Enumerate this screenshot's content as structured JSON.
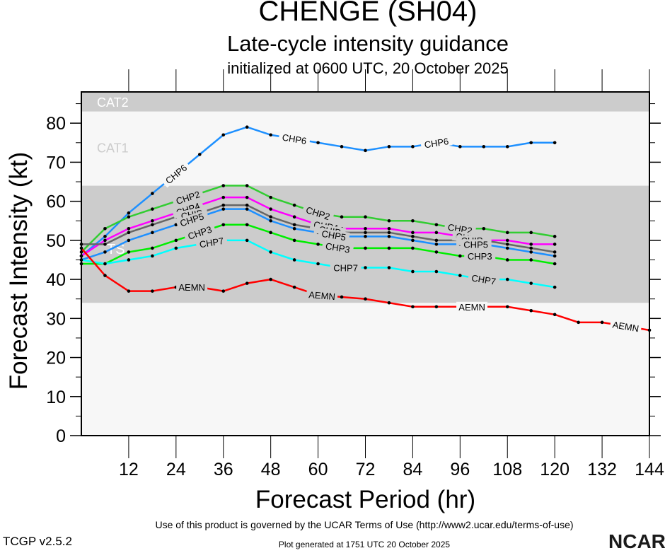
{
  "header": {
    "title": "CHENGE (SH04)",
    "subtitle": "Late-cycle intensity guidance",
    "init_line": "initialized at 0600 UTC, 20 October 2025"
  },
  "footer": {
    "terms": "Use of this product is governed by the UCAR Terms of Use (http://www2.ucar.edu/terms-of-use)",
    "version": "TCGP v2.5.2",
    "generated": "Plot generated at 1751 UTC   20 October 2025",
    "logo": "NCAR"
  },
  "chart_data": {
    "type": "line",
    "title": "CHENGE (SH04)",
    "xlabel": "Forecast Period (hr)",
    "ylabel": "Forecast Intensity (kt)",
    "xlim": [
      0,
      144
    ],
    "ylim": [
      0,
      88
    ],
    "xticks": [
      12,
      24,
      36,
      48,
      60,
      72,
      84,
      96,
      108,
      120,
      132,
      144
    ],
    "yticks": [
      0,
      10,
      20,
      30,
      40,
      50,
      60,
      70,
      80
    ],
    "bands": [
      {
        "label": "TS",
        "range": [
          34,
          64
        ],
        "color": "#cccccc",
        "label_color": "#ffffff"
      },
      {
        "label": "CAT1",
        "range": [
          64,
          83
        ],
        "color": "#f7f7f7",
        "label_color": "#cccccc"
      },
      {
        "label": "CAT2",
        "range": [
          83,
          88
        ],
        "color": "#cccccc",
        "label_color": "#ffffff"
      }
    ],
    "below_band_color": "#f7f7f7",
    "series": [
      {
        "name": "CHP6",
        "color": "#1e90ff",
        "x": [
          0,
          6,
          12,
          18,
          24,
          30,
          36,
          42,
          48,
          54,
          60,
          66,
          72,
          78,
          84,
          90,
          96,
          102,
          108,
          114,
          120
        ],
        "values": [
          46,
          51,
          57,
          62,
          67,
          72,
          77,
          79,
          77,
          76,
          75,
          74,
          73,
          74,
          74,
          75,
          74,
          74,
          74,
          75,
          75
        ],
        "label_at": [
          24,
          54,
          90
        ]
      },
      {
        "name": "CHP2",
        "color": "#32cd32",
        "x": [
          0,
          6,
          12,
          18,
          24,
          30,
          36,
          42,
          48,
          54,
          60,
          66,
          72,
          78,
          84,
          90,
          96,
          102,
          108,
          114,
          120
        ],
        "values": [
          47,
          53,
          56,
          58,
          60,
          62,
          64,
          64,
          61,
          59,
          57,
          56,
          56,
          55,
          55,
          54,
          53,
          53,
          52,
          52,
          51
        ],
        "label_at": [
          27,
          60,
          96
        ]
      },
      {
        "name": "CHP4",
        "color": "#ff00ff",
        "x": [
          0,
          6,
          12,
          18,
          24,
          30,
          36,
          42,
          48,
          54,
          60,
          66,
          72,
          78,
          84,
          90,
          96,
          102,
          108,
          114,
          120
        ],
        "values": [
          46,
          50,
          53,
          55,
          57,
          59,
          61,
          61,
          58,
          56,
          54,
          53,
          53,
          53,
          52,
          52,
          51,
          50,
          50,
          49,
          49
        ],
        "label_at": [
          27,
          62,
          98
        ]
      },
      {
        "name": "CHIP",
        "color": "#666666",
        "x": [
          0,
          6,
          12,
          18,
          24,
          30,
          36,
          42,
          48,
          54,
          60,
          66,
          72,
          78,
          84,
          90,
          96,
          102,
          108,
          114,
          120
        ],
        "values": [
          49,
          49,
          52,
          54,
          56,
          57,
          59,
          59,
          56,
          54,
          53,
          52,
          52,
          52,
          51,
          50,
          50,
          50,
          49,
          48,
          47
        ],
        "label_at": [
          28,
          63,
          99
        ]
      },
      {
        "name": "CHP5",
        "color": "#1e90ff",
        "x": [
          0,
          6,
          12,
          18,
          24,
          30,
          36,
          42,
          48,
          54,
          60,
          66,
          72,
          78,
          84,
          90,
          96,
          102,
          108,
          114,
          120
        ],
        "values": [
          45,
          47,
          50,
          52,
          54,
          56,
          58,
          58,
          55,
          53,
          52,
          51,
          51,
          51,
          50,
          49,
          49,
          49,
          48,
          47,
          46
        ],
        "label_at": [
          28,
          64,
          100
        ]
      },
      {
        "name": "CHP3",
        "color": "#00ee00",
        "x": [
          0,
          6,
          12,
          18,
          24,
          30,
          36,
          42,
          48,
          54,
          60,
          66,
          72,
          78,
          84,
          90,
          96,
          102,
          108,
          114,
          120
        ],
        "values": [
          44,
          44,
          47,
          48,
          50,
          52,
          54,
          54,
          52,
          50,
          49,
          48,
          48,
          48,
          48,
          47,
          46,
          46,
          45,
          45,
          44
        ],
        "label_at": [
          30,
          65,
          101
        ]
      },
      {
        "name": "CHP7",
        "color": "#00ffff",
        "x": [
          0,
          6,
          12,
          18,
          24,
          30,
          36,
          42,
          48,
          54,
          60,
          66,
          72,
          78,
          84,
          90,
          96,
          102,
          108,
          114,
          120
        ],
        "values": [
          45,
          44,
          45,
          46,
          48,
          49,
          50,
          50,
          47,
          45,
          44,
          43,
          43,
          43,
          42,
          42,
          41,
          40,
          40,
          39,
          38
        ],
        "label_at": [
          33,
          67,
          102
        ]
      },
      {
        "name": "AEMN",
        "color": "#ff0000",
        "x": [
          0,
          6,
          12,
          18,
          24,
          30,
          36,
          42,
          48,
          54,
          60,
          66,
          72,
          78,
          84,
          90,
          96,
          102,
          108,
          114,
          120,
          126,
          132,
          138,
          144
        ],
        "values": [
          48,
          41,
          37,
          37,
          38,
          38,
          37,
          39,
          40,
          38,
          36,
          35.5,
          35,
          34,
          33,
          33,
          33,
          33,
          33,
          32,
          31,
          29,
          29,
          28,
          27
        ],
        "label_at": [
          28,
          61,
          99,
          138
        ]
      }
    ]
  }
}
